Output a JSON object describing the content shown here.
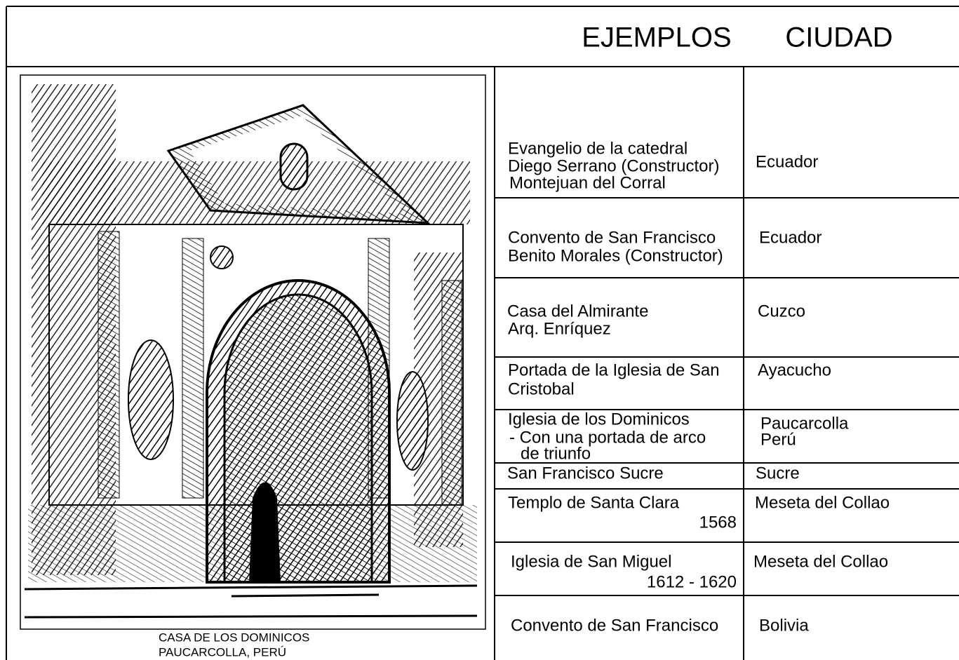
{
  "header": {
    "col1": "EJEMPLOS",
    "col2": "CIUDAD"
  },
  "caption": [
    "CASA DE LOS DOMINICOS",
    "PAUCARCOLLA, PERÚ"
  ],
  "table": {
    "rows": [
      {
        "ejemplo": [
          "Evangelio de la catedral",
          "Diego Serrano (Constructor)",
          "Montejuan del Corral"
        ],
        "ciudad": [
          "Ecuador"
        ]
      },
      {
        "ejemplo": [
          "Convento de San Francisco",
          "Benito Morales (Constructor)"
        ],
        "ciudad": [
          "Ecuador"
        ]
      },
      {
        "ejemplo": [
          "Casa del Almirante",
          "Arq. Enríquez"
        ],
        "ciudad": [
          "Cuzco"
        ]
      },
      {
        "ejemplo": [
          "Portada de la Iglesia de San",
          "Cristobal"
        ],
        "ciudad": [
          "Ayacucho"
        ]
      },
      {
        "ejemplo": [
          "Iglesia de los Dominicos",
          "- Con una portada de arco",
          "de triunfo"
        ],
        "ciudad": [
          "Paucarcolla",
          "Perú"
        ]
      },
      {
        "ejemplo": [
          "San Francisco Sucre"
        ],
        "ciudad": [
          "Sucre"
        ]
      },
      {
        "ejemplo": [
          "Templo de Santa Clara",
          "1568"
        ],
        "ciudad": [
          "Meseta del Collao"
        ]
      },
      {
        "ejemplo": [
          "Iglesia de San Miguel",
          "1612 - 1620"
        ],
        "ciudad": [
          "Meseta del Collao"
        ]
      },
      {
        "ejemplo": [
          "Convento de San Francisco"
        ],
        "ciudad": [
          "Bolivia"
        ]
      }
    ]
  }
}
